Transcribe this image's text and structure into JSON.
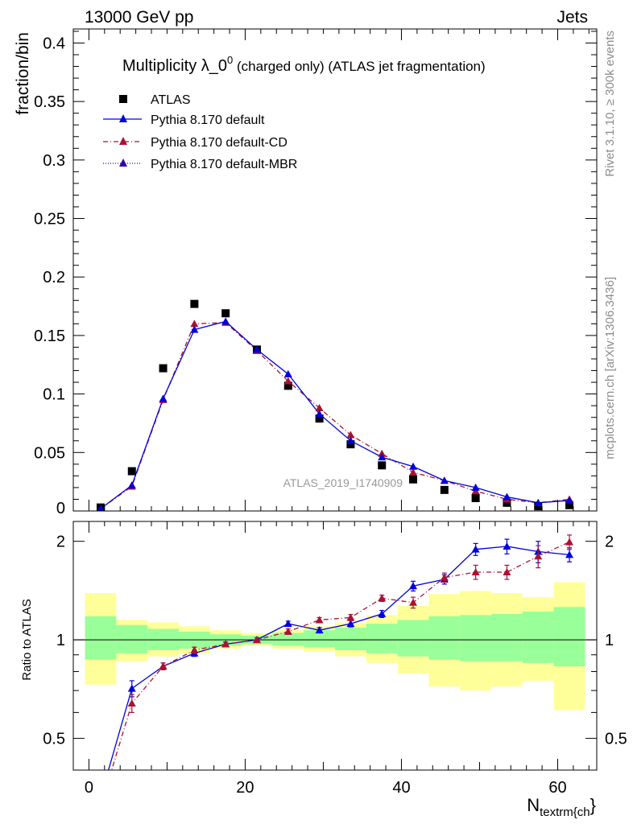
{
  "header": {
    "left": "13000 GeV pp",
    "right": "Jets"
  },
  "side_labels": {
    "top": "Rivet 3.1.10, ≥ 300k events",
    "bottom": "mcplots.cern.ch [arXiv:1306.3436]"
  },
  "watermark": "ATLAS_2019_I1740909",
  "colors": {
    "atlas": "#000000",
    "default": "#0000dd",
    "cd": "#aa1133",
    "mbr": "#3300aa",
    "band_inner": "#99ff99",
    "band_outer": "#ffff99"
  },
  "chart_data": [
    {
      "type": "scatter",
      "title_main": "Multiplicity λ_0",
      "title_sup": "0",
      "title_rest": " (charged only) (ATLAS jet fragmentation)",
      "ylabel": "fraction/bin",
      "xlim": [
        -2,
        65
      ],
      "ylim": [
        0,
        0.412
      ],
      "yticks": [
        0,
        0.05,
        0.1,
        0.15,
        0.2,
        0.25,
        0.3,
        0.35,
        0.4
      ],
      "ytick_labels": [
        "0",
        "0.05",
        "0.1",
        "0.15",
        "0.2",
        "0.25",
        "0.3",
        "0.35",
        "0.4"
      ],
      "x": [
        1.5,
        5.5,
        9.5,
        13.5,
        17.5,
        21.5,
        25.5,
        29.5,
        33.5,
        37.5,
        41.5,
        45.5,
        49.5,
        53.5,
        57.5,
        61.5
      ],
      "legend": [
        "ATLAS",
        "Pythia 8.170 default",
        "Pythia 8.170 default-CD",
        "Pythia 8.170 default-MBR"
      ],
      "series": [
        {
          "name": "ATLAS",
          "values": [
            0.003,
            0.034,
            0.122,
            0.177,
            0.169,
            0.138,
            0.107,
            0.079,
            0.057,
            0.039,
            0.027,
            0.018,
            0.011,
            0.007,
            0.004,
            0.005
          ]
        },
        {
          "name": "Pythia 8.170 default",
          "values": [
            0.002,
            0.022,
            0.096,
            0.155,
            0.162,
            0.138,
            0.117,
            0.083,
            0.06,
            0.046,
            0.038,
            0.026,
            0.02,
            0.012,
            0.007,
            0.009
          ]
        },
        {
          "name": "Pythia 8.170 default-CD",
          "values": [
            0.002,
            0.021,
            0.095,
            0.16,
            0.161,
            0.137,
            0.111,
            0.088,
            0.065,
            0.049,
            0.033,
            0.026,
            0.017,
            0.01,
            0.007,
            0.01
          ]
        }
      ]
    },
    {
      "type": "line",
      "ylabel": "Ratio to ATLAS",
      "xlabel": "N",
      "xlabel_sub": "textrm{ch",
      "xlabel_tail": "}",
      "xlim": [
        -2,
        65
      ],
      "ylim": [
        0.4,
        2.3
      ],
      "xticks": [
        0,
        20,
        40,
        60
      ],
      "xtick_labels": [
        "0",
        "20",
        "40",
        "60"
      ],
      "yticks": [
        0.5,
        1,
        2
      ],
      "ytick_labels": [
        "0.5",
        "1",
        "2"
      ],
      "x": [
        1.5,
        5.5,
        9.5,
        13.5,
        17.5,
        21.5,
        25.5,
        29.5,
        33.5,
        37.5,
        41.5,
        45.5,
        49.5,
        53.5,
        57.5,
        61.5
      ],
      "bin_edges": [
        -0.5,
        3.5,
        7.5,
        11.5,
        15.5,
        19.5,
        23.5,
        27.5,
        31.5,
        35.5,
        39.5,
        43.5,
        47.5,
        51.5,
        55.5,
        59.5,
        63.5
      ],
      "band_inner": [
        [
          0.87,
          1.18
        ],
        [
          0.91,
          1.11
        ],
        [
          0.93,
          1.08
        ],
        [
          0.94,
          1.06
        ],
        [
          0.96,
          1.04
        ],
        [
          0.97,
          1.03
        ],
        [
          0.96,
          1.05
        ],
        [
          0.95,
          1.07
        ],
        [
          0.93,
          1.09
        ],
        [
          0.91,
          1.12
        ],
        [
          0.89,
          1.15
        ],
        [
          0.87,
          1.18
        ],
        [
          0.86,
          1.19
        ],
        [
          0.86,
          1.2
        ],
        [
          0.85,
          1.22
        ],
        [
          0.83,
          1.26
        ]
      ],
      "band_outer": [
        [
          0.73,
          1.39
        ],
        [
          0.86,
          1.15
        ],
        [
          0.89,
          1.13
        ],
        [
          0.91,
          1.1
        ],
        [
          0.94,
          1.07
        ],
        [
          0.96,
          1.05
        ],
        [
          0.94,
          1.07
        ],
        [
          0.92,
          1.1
        ],
        [
          0.89,
          1.13
        ],
        [
          0.85,
          1.19
        ],
        [
          0.79,
          1.27
        ],
        [
          0.72,
          1.38
        ],
        [
          0.7,
          1.41
        ],
        [
          0.72,
          1.39
        ],
        [
          0.75,
          1.35
        ],
        [
          0.61,
          1.5
        ]
      ],
      "series": [
        {
          "name": "Pythia 8.170 default",
          "values": [
            0.33,
            0.71,
            0.83,
            0.91,
            0.97,
            1.0,
            1.12,
            1.07,
            1.12,
            1.2,
            1.46,
            1.53,
            1.89,
            1.93,
            1.86,
            1.82
          ],
          "errors": [
            0.02,
            0.04,
            0.02,
            0.02,
            0.015,
            0.015,
            0.02,
            0.02,
            0.025,
            0.03,
            0.05,
            0.05,
            0.08,
            0.1,
            0.14,
            0.09
          ]
        },
        {
          "name": "Pythia 8.170 default-CD",
          "values": [
            0.31,
            0.64,
            0.83,
            0.93,
            0.97,
            1.0,
            1.06,
            1.15,
            1.17,
            1.34,
            1.3,
            1.55,
            1.61,
            1.61,
            1.8,
            1.99
          ],
          "errors": [
            0.02,
            0.04,
            0.02,
            0.02,
            0.015,
            0.015,
            0.02,
            0.02,
            0.025,
            0.03,
            0.05,
            0.05,
            0.08,
            0.08,
            0.14,
            0.1
          ]
        }
      ]
    }
  ]
}
